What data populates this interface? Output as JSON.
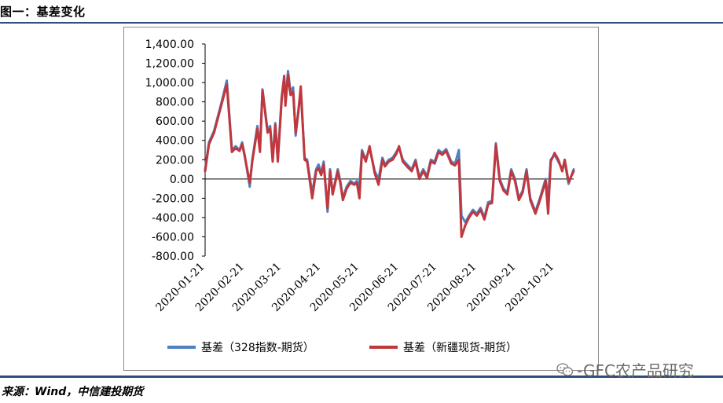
{
  "figure_title": "图一：基差变化",
  "source": "来源：Wind，中信建投期货",
  "watermark": "-GFC农产品研究",
  "colors": {
    "series1": "#4f81bd",
    "series2": "#c0373d",
    "rule": "#2f4e7a",
    "zero_line": "#000000"
  },
  "chart_data": {
    "type": "line",
    "title": "",
    "ylim": [
      -800,
      1400
    ],
    "y_ticks": [
      "1,400.00",
      "1,200.00",
      "1,000.00",
      "800.00",
      "600.00",
      "400.00",
      "200.00",
      "0.00",
      "-200.00",
      "-400.00",
      "-600.00",
      "-800.00"
    ],
    "x_ticks": [
      "2020-01-21",
      "2020-02-21",
      "2020-03-21",
      "2020-04-21",
      "2020-05-21",
      "2020-06-21",
      "2020-07-21",
      "2020-08-21",
      "2020-09-21",
      "2020-10-21"
    ],
    "x_range": [
      "2020-01-21",
      "2020-11-05"
    ],
    "legend_position": "bottom",
    "series": [
      {
        "name": "基差（328指数-期货）",
        "color": "#4f81bd",
        "points": [
          [
            "2020-01-21",
            100
          ],
          [
            "2020-01-24",
            380
          ],
          [
            "2020-01-28",
            500
          ],
          [
            "2020-02-03",
            800
          ],
          [
            "2020-02-07",
            1020
          ],
          [
            "2020-02-11",
            300
          ],
          [
            "2020-02-14",
            340
          ],
          [
            "2020-02-17",
            300
          ],
          [
            "2020-02-19",
            380
          ],
          [
            "2020-02-21",
            250
          ],
          [
            "2020-02-25",
            -80
          ],
          [
            "2020-02-27",
            200
          ],
          [
            "2020-03-02",
            550
          ],
          [
            "2020-03-04",
            300
          ],
          [
            "2020-03-06",
            930
          ],
          [
            "2020-03-10",
            500
          ],
          [
            "2020-03-12",
            550
          ],
          [
            "2020-03-14",
            200
          ],
          [
            "2020-03-16",
            580
          ],
          [
            "2020-03-18",
            200
          ],
          [
            "2020-03-21",
            850
          ],
          [
            "2020-03-23",
            1050
          ],
          [
            "2020-03-24",
            800
          ],
          [
            "2020-03-26",
            1120
          ],
          [
            "2020-03-28",
            900
          ],
          [
            "2020-03-30",
            950
          ],
          [
            "2020-04-01",
            450
          ],
          [
            "2020-04-03",
            700
          ],
          [
            "2020-04-05",
            920
          ],
          [
            "2020-04-08",
            220
          ],
          [
            "2020-04-10",
            200
          ],
          [
            "2020-04-14",
            -150
          ],
          [
            "2020-04-17",
            100
          ],
          [
            "2020-04-19",
            150
          ],
          [
            "2020-04-21",
            60
          ],
          [
            "2020-04-23",
            180
          ],
          [
            "2020-04-26",
            -340
          ],
          [
            "2020-04-28",
            100
          ],
          [
            "2020-04-30",
            -150
          ],
          [
            "2020-05-04",
            100
          ],
          [
            "2020-05-06",
            -20
          ],
          [
            "2020-05-08",
            -200
          ],
          [
            "2020-05-11",
            -80
          ],
          [
            "2020-05-14",
            -20
          ],
          [
            "2020-05-17",
            -50
          ],
          [
            "2020-05-19",
            -20
          ],
          [
            "2020-05-21",
            -80
          ],
          [
            "2020-05-23",
            300
          ],
          [
            "2020-05-26",
            200
          ],
          [
            "2020-05-29",
            320
          ],
          [
            "2020-06-02",
            80
          ],
          [
            "2020-06-05",
            0
          ],
          [
            "2020-06-08",
            220
          ],
          [
            "2020-06-10",
            150
          ],
          [
            "2020-06-13",
            200
          ],
          [
            "2020-06-16",
            220
          ],
          [
            "2020-06-19",
            280
          ],
          [
            "2020-06-21",
            330
          ],
          [
            "2020-06-24",
            200
          ],
          [
            "2020-06-28",
            140
          ],
          [
            "2020-07-01",
            100
          ],
          [
            "2020-07-04",
            200
          ],
          [
            "2020-07-07",
            20
          ],
          [
            "2020-07-10",
            100
          ],
          [
            "2020-07-13",
            30
          ],
          [
            "2020-07-16",
            200
          ],
          [
            "2020-07-19",
            180
          ],
          [
            "2020-07-22",
            300
          ],
          [
            "2020-07-25",
            270
          ],
          [
            "2020-07-28",
            310
          ],
          [
            "2020-08-01",
            180
          ],
          [
            "2020-08-04",
            160
          ],
          [
            "2020-08-07",
            300
          ],
          [
            "2020-08-09",
            -380
          ],
          [
            "2020-08-12",
            -450
          ],
          [
            "2020-08-15",
            -380
          ],
          [
            "2020-08-18",
            -320
          ],
          [
            "2020-08-21",
            -360
          ],
          [
            "2020-08-24",
            -300
          ],
          [
            "2020-08-27",
            -400
          ],
          [
            "2020-08-30",
            -240
          ],
          [
            "2020-09-02",
            -230
          ],
          [
            "2020-09-05",
            370
          ],
          [
            "2020-09-08",
            0
          ],
          [
            "2020-09-11",
            -100
          ],
          [
            "2020-09-14",
            -140
          ],
          [
            "2020-09-17",
            100
          ],
          [
            "2020-09-20",
            0
          ],
          [
            "2020-09-23",
            -200
          ],
          [
            "2020-09-26",
            -120
          ],
          [
            "2020-09-29",
            100
          ],
          [
            "2020-10-02",
            -200
          ],
          [
            "2020-10-06",
            -340
          ],
          [
            "2020-10-10",
            -180
          ],
          [
            "2020-10-14",
            0
          ],
          [
            "2020-10-16",
            -200
          ],
          [
            "2020-10-18",
            200
          ],
          [
            "2020-10-21",
            250
          ],
          [
            "2020-10-24",
            180
          ],
          [
            "2020-10-27",
            100
          ],
          [
            "2020-10-29",
            180
          ],
          [
            "2020-11-01",
            -50
          ],
          [
            "2020-11-05",
            100
          ]
        ]
      },
      {
        "name": "基差（新疆现货-期货）",
        "color": "#c0373d",
        "points": [
          [
            "2020-01-21",
            80
          ],
          [
            "2020-01-24",
            360
          ],
          [
            "2020-01-28",
            480
          ],
          [
            "2020-02-03",
            780
          ],
          [
            "2020-02-07",
            980
          ],
          [
            "2020-02-11",
            280
          ],
          [
            "2020-02-14",
            320
          ],
          [
            "2020-02-17",
            290
          ],
          [
            "2020-02-19",
            360
          ],
          [
            "2020-02-21",
            240
          ],
          [
            "2020-02-25",
            -40
          ],
          [
            "2020-02-27",
            180
          ],
          [
            "2020-03-02",
            520
          ],
          [
            "2020-03-04",
            280
          ],
          [
            "2020-03-06",
            920
          ],
          [
            "2020-03-10",
            480
          ],
          [
            "2020-03-12",
            520
          ],
          [
            "2020-03-14",
            180
          ],
          [
            "2020-03-16",
            560
          ],
          [
            "2020-03-18",
            180
          ],
          [
            "2020-03-21",
            820
          ],
          [
            "2020-03-23",
            1070
          ],
          [
            "2020-03-24",
            760
          ],
          [
            "2020-03-26",
            1080
          ],
          [
            "2020-03-28",
            870
          ],
          [
            "2020-03-30",
            900
          ],
          [
            "2020-04-01",
            480
          ],
          [
            "2020-04-03",
            680
          ],
          [
            "2020-04-05",
            960
          ],
          [
            "2020-04-08",
            200
          ],
          [
            "2020-04-10",
            180
          ],
          [
            "2020-04-14",
            -200
          ],
          [
            "2020-04-17",
            80
          ],
          [
            "2020-04-19",
            110
          ],
          [
            "2020-04-21",
            40
          ],
          [
            "2020-04-23",
            150
          ],
          [
            "2020-04-26",
            -300
          ],
          [
            "2020-04-28",
            80
          ],
          [
            "2020-04-30",
            -160
          ],
          [
            "2020-05-04",
            80
          ],
          [
            "2020-05-06",
            -40
          ],
          [
            "2020-05-08",
            -220
          ],
          [
            "2020-05-11",
            -100
          ],
          [
            "2020-05-14",
            -40
          ],
          [
            "2020-05-17",
            -60
          ],
          [
            "2020-05-19",
            -40
          ],
          [
            "2020-05-21",
            -200
          ],
          [
            "2020-05-23",
            280
          ],
          [
            "2020-05-26",
            180
          ],
          [
            "2020-05-29",
            340
          ],
          [
            "2020-06-02",
            60
          ],
          [
            "2020-06-05",
            -60
          ],
          [
            "2020-06-08",
            200
          ],
          [
            "2020-06-10",
            130
          ],
          [
            "2020-06-13",
            180
          ],
          [
            "2020-06-16",
            200
          ],
          [
            "2020-06-19",
            260
          ],
          [
            "2020-06-21",
            340
          ],
          [
            "2020-06-24",
            180
          ],
          [
            "2020-06-28",
            120
          ],
          [
            "2020-07-01",
            80
          ],
          [
            "2020-07-04",
            180
          ],
          [
            "2020-07-07",
            0
          ],
          [
            "2020-07-10",
            80
          ],
          [
            "2020-07-13",
            10
          ],
          [
            "2020-07-16",
            180
          ],
          [
            "2020-07-19",
            160
          ],
          [
            "2020-07-22",
            280
          ],
          [
            "2020-07-25",
            250
          ],
          [
            "2020-07-28",
            290
          ],
          [
            "2020-08-01",
            160
          ],
          [
            "2020-08-04",
            140
          ],
          [
            "2020-08-07",
            200
          ],
          [
            "2020-08-09",
            -600
          ],
          [
            "2020-08-12",
            -480
          ],
          [
            "2020-08-15",
            -400
          ],
          [
            "2020-08-18",
            -340
          ],
          [
            "2020-08-21",
            -380
          ],
          [
            "2020-08-24",
            -320
          ],
          [
            "2020-08-27",
            -420
          ],
          [
            "2020-08-30",
            -260
          ],
          [
            "2020-09-02",
            -250
          ],
          [
            "2020-09-05",
            350
          ],
          [
            "2020-09-08",
            -20
          ],
          [
            "2020-09-11",
            -120
          ],
          [
            "2020-09-14",
            -160
          ],
          [
            "2020-09-17",
            80
          ],
          [
            "2020-09-20",
            -20
          ],
          [
            "2020-09-23",
            -220
          ],
          [
            "2020-09-26",
            -140
          ],
          [
            "2020-09-29",
            80
          ],
          [
            "2020-10-02",
            -220
          ],
          [
            "2020-10-06",
            -360
          ],
          [
            "2020-10-10",
            -200
          ],
          [
            "2020-10-14",
            -20
          ],
          [
            "2020-10-16",
            -360
          ],
          [
            "2020-10-18",
            180
          ],
          [
            "2020-10-21",
            270
          ],
          [
            "2020-10-24",
            200
          ],
          [
            "2020-10-27",
            80
          ],
          [
            "2020-10-29",
            200
          ],
          [
            "2020-11-01",
            -30
          ],
          [
            "2020-11-05",
            80
          ]
        ]
      }
    ]
  }
}
